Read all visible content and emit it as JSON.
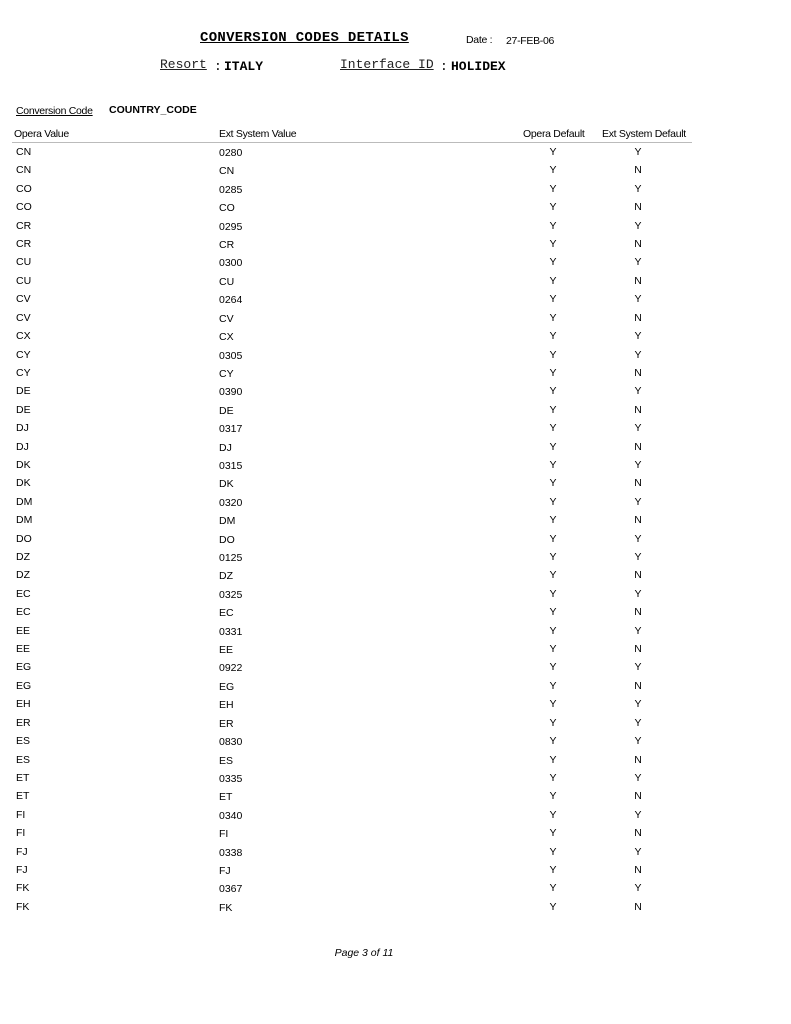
{
  "report": {
    "title": "CONVERSION CODES DETAILS",
    "date_label": "Date :",
    "date_value": "27-FEB-06",
    "resort_label": "Resort",
    "resort_sep": ":",
    "resort_value": "ITALY",
    "interface_label": "Interface ID",
    "interface_sep": ":",
    "interface_value": "HOLIDEX",
    "conversion_code_label": "Conversion Code",
    "conversion_code_value": "COUNTRY_CODE"
  },
  "table": {
    "columns": [
      "Opera Value",
      "Ext System Value",
      "Opera Default",
      "Ext System Default"
    ],
    "rows": [
      [
        "CN",
        "0280",
        "Y",
        "Y"
      ],
      [
        "CN",
        "CN",
        "Y",
        "N"
      ],
      [
        "CO",
        "0285",
        "Y",
        "Y"
      ],
      [
        "CO",
        "CO",
        "Y",
        "N"
      ],
      [
        "CR",
        "0295",
        "Y",
        "Y"
      ],
      [
        "CR",
        "CR",
        "Y",
        "N"
      ],
      [
        "CU",
        "0300",
        "Y",
        "Y"
      ],
      [
        "CU",
        "CU",
        "Y",
        "N"
      ],
      [
        "CV",
        "0264",
        "Y",
        "Y"
      ],
      [
        "CV",
        "CV",
        "Y",
        "N"
      ],
      [
        "CX",
        "CX",
        "Y",
        "Y"
      ],
      [
        "CY",
        "0305",
        "Y",
        "Y"
      ],
      [
        "CY",
        "CY",
        "Y",
        "N"
      ],
      [
        "DE",
        "0390",
        "Y",
        "Y"
      ],
      [
        "DE",
        "DE",
        "Y",
        "N"
      ],
      [
        "DJ",
        "0317",
        "Y",
        "Y"
      ],
      [
        "DJ",
        "DJ",
        "Y",
        "N"
      ],
      [
        "DK",
        "0315",
        "Y",
        "Y"
      ],
      [
        "DK",
        "DK",
        "Y",
        "N"
      ],
      [
        "DM",
        "0320",
        "Y",
        "Y"
      ],
      [
        "DM",
        "DM",
        "Y",
        "N"
      ],
      [
        "DO",
        "DO",
        "Y",
        "Y"
      ],
      [
        "DZ",
        "0125",
        "Y",
        "Y"
      ],
      [
        "DZ",
        "DZ",
        "Y",
        "N"
      ],
      [
        "EC",
        "0325",
        "Y",
        "Y"
      ],
      [
        "EC",
        "EC",
        "Y",
        "N"
      ],
      [
        "EE",
        "0331",
        "Y",
        "Y"
      ],
      [
        "EE",
        "EE",
        "Y",
        "N"
      ],
      [
        "EG",
        "0922",
        "Y",
        "Y"
      ],
      [
        "EG",
        "EG",
        "Y",
        "N"
      ],
      [
        "EH",
        "EH",
        "Y",
        "Y"
      ],
      [
        "ER",
        "ER",
        "Y",
        "Y"
      ],
      [
        "ES",
        "0830",
        "Y",
        "Y"
      ],
      [
        "ES",
        "ES",
        "Y",
        "N"
      ],
      [
        "ET",
        "0335",
        "Y",
        "Y"
      ],
      [
        "ET",
        "ET",
        "Y",
        "N"
      ],
      [
        "FI",
        "0340",
        "Y",
        "Y"
      ],
      [
        "FI",
        "FI",
        "Y",
        "N"
      ],
      [
        "FJ",
        "0338",
        "Y",
        "Y"
      ],
      [
        "FJ",
        "FJ",
        "Y",
        "N"
      ],
      [
        "FK",
        "0367",
        "Y",
        "Y"
      ],
      [
        "FK",
        "FK",
        "Y",
        "N"
      ]
    ]
  },
  "footer": {
    "page": "Page 3 of 11"
  }
}
